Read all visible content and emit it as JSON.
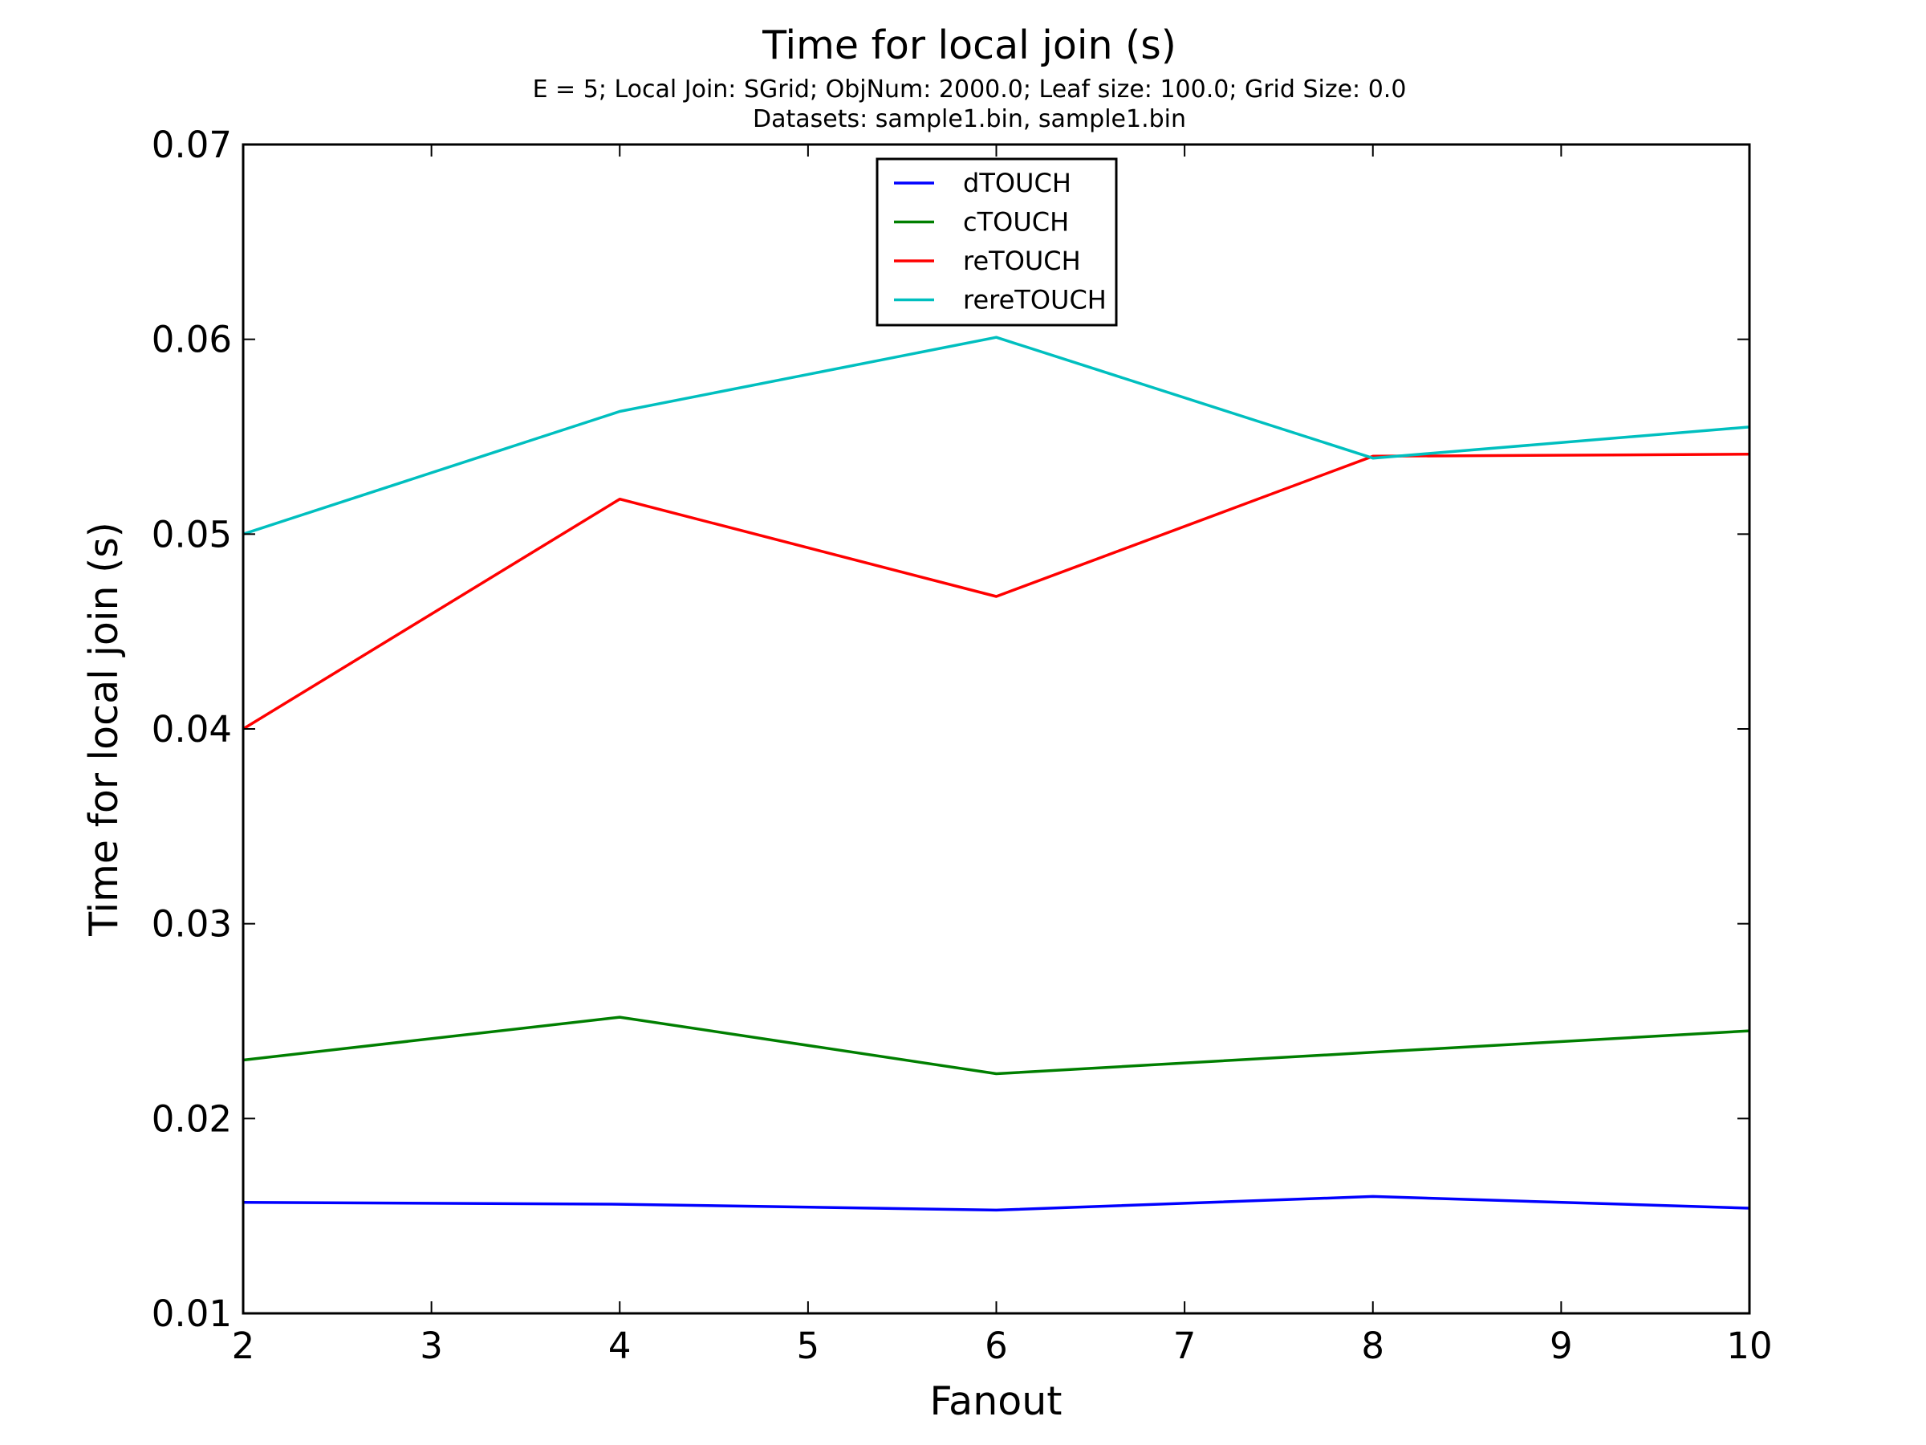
{
  "chart_data": {
    "type": "line",
    "title": "Time for local join (s)",
    "subtitle_lines": [
      "E = 5; Local Join: SGrid; ObjNum: 2000.0; Leaf size: 100.0; Grid Size: 0.0",
      "Datasets: sample1.bin, sample1.bin"
    ],
    "xlabel": "Fanout",
    "ylabel": "Time for local join (s)",
    "xlim": [
      2,
      10
    ],
    "ylim": [
      0.01,
      0.07
    ],
    "x_ticks": [
      2,
      3,
      4,
      5,
      6,
      7,
      8,
      9,
      10
    ],
    "y_ticks": [
      0.01,
      0.02,
      0.03,
      0.04,
      0.05,
      0.06,
      0.07
    ],
    "y_tick_labels": [
      "0.01",
      "0.02",
      "0.03",
      "0.04",
      "0.05",
      "0.06",
      "0.07"
    ],
    "grid": false,
    "legend_position": "upper-center",
    "series": [
      {
        "name": "dTOUCH",
        "color": "#0000ff",
        "x": [
          2,
          4,
          6,
          8,
          10
        ],
        "y": [
          0.0157,
          0.0156,
          0.0153,
          0.016,
          0.0154
        ]
      },
      {
        "name": "cTOUCH",
        "color": "#007f00",
        "x": [
          2,
          4,
          6,
          8,
          10
        ],
        "y": [
          0.023,
          0.0252,
          0.0223,
          0.0234,
          0.0245
        ]
      },
      {
        "name": "reTOUCH",
        "color": "#ff0000",
        "x": [
          2,
          4,
          6,
          8,
          10
        ],
        "y": [
          0.04,
          0.0518,
          0.0468,
          0.054,
          0.0541
        ]
      },
      {
        "name": "rereTOUCH",
        "color": "#00bfbf",
        "x": [
          2,
          4,
          6,
          8,
          10
        ],
        "y": [
          0.05,
          0.0563,
          0.0601,
          0.0539,
          0.0555
        ]
      }
    ]
  }
}
